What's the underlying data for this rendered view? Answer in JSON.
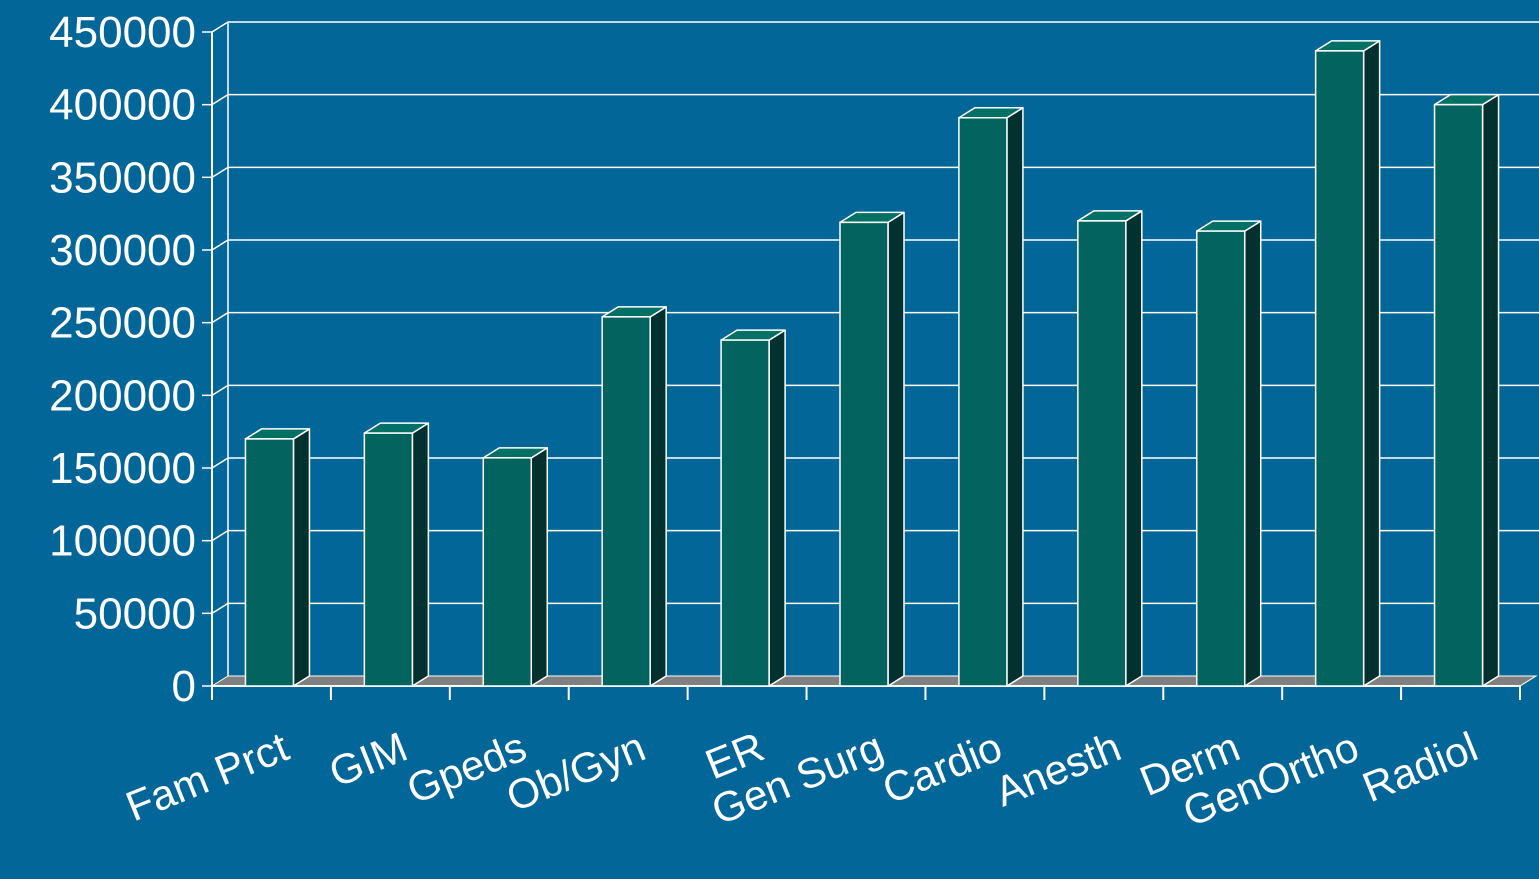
{
  "chart_data": {
    "type": "bar",
    "categories": [
      "Fam Prct",
      "GIM",
      "Gpeds",
      "Ob/Gyn",
      "ER",
      "Gen Surg",
      "Cardio",
      "Anesth",
      "Derm",
      "GenOrtho",
      "Radiol"
    ],
    "values": [
      170000,
      174000,
      157000,
      254000,
      238000,
      319000,
      391000,
      320000,
      313000,
      437000,
      400000
    ],
    "ylim": [
      0,
      450000
    ],
    "yticks": [
      "0",
      "50000",
      "100000",
      "150000",
      "200000",
      "250000",
      "300000",
      "350000",
      "400000",
      "450000"
    ],
    "grid": true,
    "legend": "none",
    "style": "3d-bar"
  },
  "colors": {
    "background": "#036699",
    "bar_front": "#03645F",
    "bar_side": "#03312F",
    "bar_top": "#037065",
    "floor": "#808080",
    "grid": "#ffffff",
    "text": "#ffffff"
  }
}
